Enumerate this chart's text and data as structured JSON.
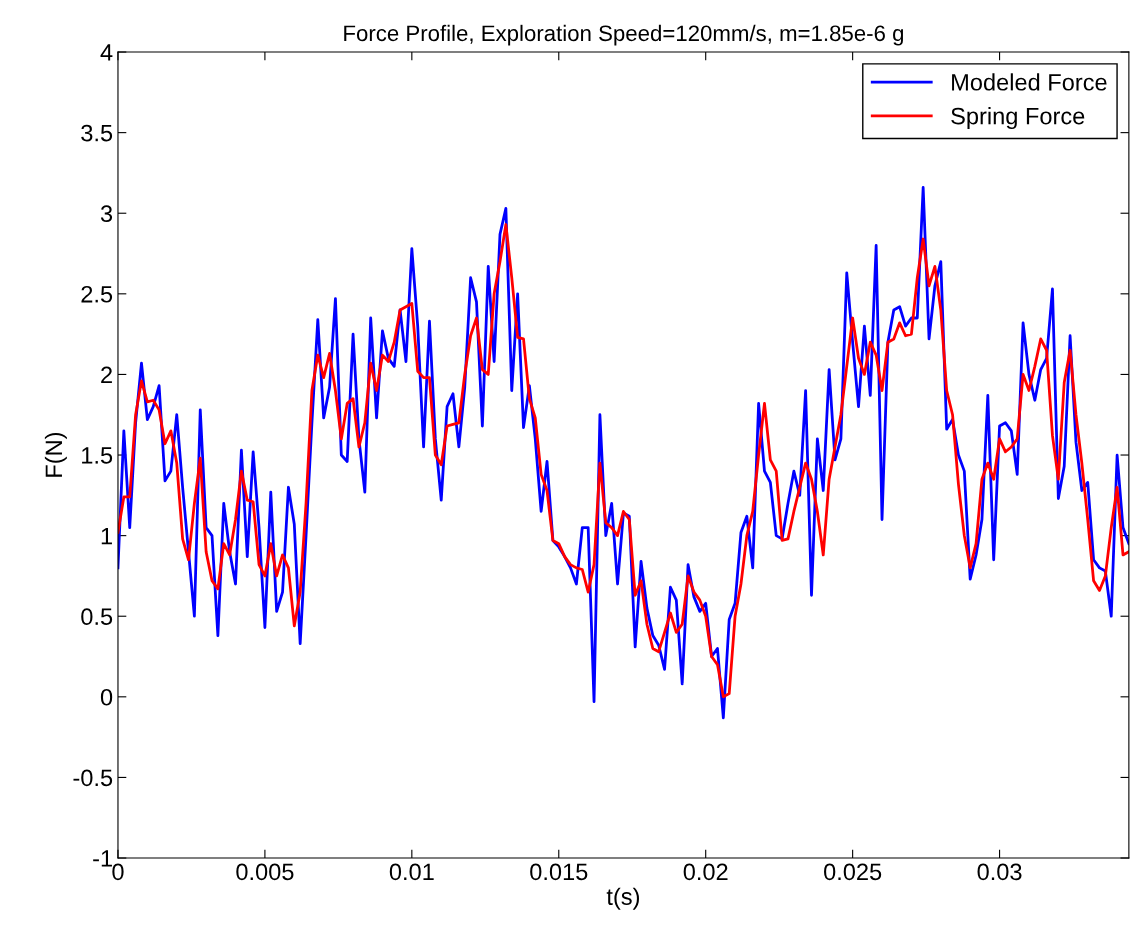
{
  "chart_data": {
    "type": "line",
    "title": "Force Profile, Exploration Speed=120mm/s, m=1.85e-6 g",
    "xlabel": "t(s)",
    "ylabel": "F(N)",
    "x": [
      0,
      0.0002,
      0.0004,
      0.0006,
      0.0008,
      0.001,
      0.0012,
      0.0014,
      0.0016,
      0.0018,
      0.002,
      0.0022,
      0.0024,
      0.0026,
      0.0028,
      0.003,
      0.0032,
      0.0034,
      0.0036,
      0.0038,
      0.004,
      0.0042,
      0.0044,
      0.0046,
      0.0048,
      0.005,
      0.0052,
      0.0054,
      0.0056,
      0.0058,
      0.006,
      0.0062,
      0.0064,
      0.0066,
      0.0068,
      0.007,
      0.0072,
      0.0074,
      0.0076,
      0.0078,
      0.008,
      0.0082,
      0.0084,
      0.0086,
      0.0088,
      0.009,
      0.0092,
      0.0094,
      0.0096,
      0.0098,
      0.01,
      0.0102,
      0.0104,
      0.0106,
      0.0108,
      0.011,
      0.0112,
      0.0114,
      0.0116,
      0.0118,
      0.012,
      0.0122,
      0.0124,
      0.0126,
      0.0128,
      0.013,
      0.0132,
      0.0134,
      0.0136,
      0.0138,
      0.014,
      0.0142,
      0.0144,
      0.0146,
      0.0148,
      0.015,
      0.0152,
      0.0154,
      0.0156,
      0.0158,
      0.016,
      0.0162,
      0.0164,
      0.0166,
      0.0168,
      0.017,
      0.0172,
      0.0174,
      0.0176,
      0.0178,
      0.018,
      0.0182,
      0.0184,
      0.0186,
      0.0188,
      0.019,
      0.0192,
      0.0194,
      0.0196,
      0.0198,
      0.02,
      0.0202,
      0.0204,
      0.0206,
      0.0208,
      0.021,
      0.0212,
      0.0214,
      0.0216,
      0.0218,
      0.022,
      0.0222,
      0.0224,
      0.0226,
      0.0228,
      0.023,
      0.0232,
      0.0234,
      0.0236,
      0.0238,
      0.024,
      0.0242,
      0.0244,
      0.0246,
      0.0248,
      0.025,
      0.0252,
      0.0254,
      0.0256,
      0.0258,
      0.026,
      0.0262,
      0.0264,
      0.0266,
      0.0268,
      0.027,
      0.0272,
      0.0274,
      0.0276,
      0.0278,
      0.028,
      0.0282,
      0.0284,
      0.0286,
      0.0288,
      0.029,
      0.0292,
      0.0294,
      0.0296,
      0.0298,
      0.03,
      0.0302,
      0.0304,
      0.0306,
      0.0308,
      0.031,
      0.0312,
      0.0314,
      0.0316,
      0.0318,
      0.032,
      0.0322,
      0.0324,
      0.0326,
      0.0328,
      0.033,
      0.0332,
      0.0334,
      0.0336,
      0.0338,
      0.034,
      0.0342,
      0.0344
    ],
    "series": [
      {
        "name": "Modeled Force",
        "color": "#0000ff",
        "values": [
          0.8,
          1.65,
          1.05,
          1.7,
          2.07,
          1.72,
          1.8,
          1.93,
          1.34,
          1.4,
          1.75,
          1.3,
          0.9,
          0.5,
          1.78,
          1.05,
          1.0,
          0.38,
          1.2,
          0.9,
          0.7,
          1.53,
          0.87,
          1.52,
          1.05,
          0.43,
          1.27,
          0.53,
          0.65,
          1.3,
          1.07,
          0.33,
          1.0,
          1.7,
          2.34,
          1.73,
          1.92,
          2.47,
          1.5,
          1.46,
          2.25,
          1.6,
          1.27,
          2.35,
          1.73,
          2.27,
          2.1,
          2.05,
          2.4,
          2.08,
          2.78,
          2.3,
          1.55,
          2.33,
          1.6,
          1.22,
          1.8,
          1.88,
          1.55,
          1.92,
          2.6,
          2.45,
          1.68,
          2.67,
          2.08,
          2.87,
          3.03,
          1.9,
          2.5,
          1.67,
          1.93,
          1.6,
          1.15,
          1.46,
          0.97,
          0.93,
          0.87,
          0.8,
          0.7,
          1.05,
          1.05,
          -0.03,
          1.75,
          1.0,
          1.2,
          0.7,
          1.14,
          1.12,
          0.31,
          0.84,
          0.55,
          0.38,
          0.32,
          0.17,
          0.68,
          0.6,
          0.08,
          0.82,
          0.62,
          0.53,
          0.58,
          0.25,
          0.3,
          -0.13,
          0.48,
          0.58,
          1.02,
          1.12,
          0.8,
          1.82,
          1.4,
          1.33,
          1.0,
          0.98,
          1.2,
          1.4,
          1.25,
          1.9,
          0.63,
          1.6,
          1.28,
          2.03,
          1.47,
          1.6,
          2.63,
          2.2,
          1.8,
          2.3,
          1.87,
          2.8,
          1.1,
          2.2,
          2.4,
          2.42,
          2.3,
          2.35,
          2.35,
          3.16,
          2.22,
          2.55,
          2.7,
          1.66,
          1.72,
          1.5,
          1.4,
          0.73,
          0.88,
          1.1,
          1.87,
          0.85,
          1.68,
          1.7,
          1.65,
          1.38,
          2.32,
          2.0,
          1.84,
          2.03,
          2.1,
          2.53,
          1.23,
          1.43,
          2.24,
          1.58,
          1.28,
          1.33,
          0.85,
          0.8,
          0.78,
          0.5,
          1.5,
          1.05,
          0.95
        ]
      },
      {
        "name": "Spring Force",
        "color": "#ff0000",
        "values": [
          1.02,
          1.24,
          1.24,
          1.75,
          1.96,
          1.83,
          1.84,
          1.78,
          1.57,
          1.65,
          1.45,
          0.98,
          0.85,
          1.2,
          1.48,
          0.9,
          0.72,
          0.67,
          0.95,
          0.88,
          1.1,
          1.4,
          1.22,
          1.21,
          0.82,
          0.75,
          0.95,
          0.75,
          0.88,
          0.8,
          0.44,
          0.65,
          1.2,
          1.9,
          2.12,
          1.98,
          2.13,
          1.9,
          1.6,
          1.82,
          1.85,
          1.55,
          1.7,
          2.07,
          1.9,
          2.12,
          2.08,
          2.2,
          2.4,
          2.42,
          2.44,
          2.02,
          1.98,
          1.98,
          1.5,
          1.44,
          1.68,
          1.69,
          1.7,
          2.0,
          2.24,
          2.35,
          2.03,
          2.0,
          2.5,
          2.7,
          2.93,
          2.6,
          2.23,
          2.22,
          1.85,
          1.73,
          1.38,
          1.28,
          0.97,
          0.95,
          0.87,
          0.82,
          0.8,
          0.79,
          0.65,
          0.82,
          1.45,
          1.08,
          1.05,
          1.0,
          1.15,
          1.1,
          0.63,
          0.72,
          0.45,
          0.3,
          0.28,
          0.4,
          0.52,
          0.4,
          0.45,
          0.75,
          0.65,
          0.6,
          0.5,
          0.25,
          0.2,
          0.0,
          0.02,
          0.5,
          0.7,
          1.0,
          1.15,
          1.5,
          1.82,
          1.47,
          1.4,
          0.97,
          0.98,
          1.15,
          1.3,
          1.45,
          1.35,
          1.15,
          0.88,
          1.35,
          1.55,
          1.75,
          2.05,
          2.35,
          2.1,
          2.0,
          2.2,
          2.12,
          1.9,
          2.2,
          2.22,
          2.32,
          2.24,
          2.25,
          2.6,
          2.84,
          2.55,
          2.67,
          2.4,
          1.9,
          1.75,
          1.32,
          1.0,
          0.8,
          0.95,
          1.35,
          1.45,
          1.35,
          1.6,
          1.52,
          1.55,
          1.6,
          2.0,
          1.9,
          2.05,
          2.22,
          2.15,
          1.62,
          1.35,
          1.95,
          2.15,
          1.75,
          1.45,
          1.1,
          0.72,
          0.66,
          0.75,
          1.05,
          1.3,
          0.88,
          0.9
        ]
      }
    ],
    "xlim": [
      0,
      0.0344
    ],
    "ylim": [
      -1,
      4
    ],
    "xticks": [
      0,
      0.005,
      0.01,
      0.015,
      0.02,
      0.025,
      0.03
    ],
    "yticks": [
      -1,
      -0.5,
      0,
      0.5,
      1,
      1.5,
      2,
      2.5,
      3,
      3.5,
      4
    ],
    "legend": "top right"
  }
}
